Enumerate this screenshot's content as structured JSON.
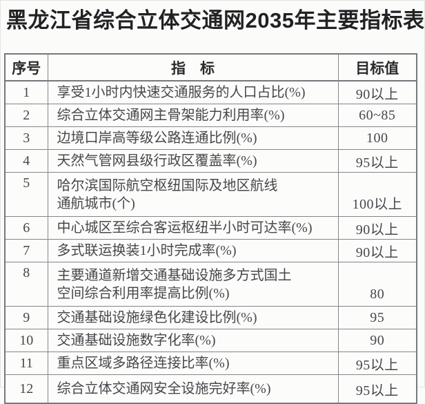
{
  "page": {
    "title": "黑龙江省综合立体交通网2035年主要指标表"
  },
  "table": {
    "headers": {
      "no": "序号",
      "indicator": "指　标",
      "target": "目标值"
    },
    "rows": [
      {
        "no": "1",
        "indicator": "享受1小时内快速交通服务的人口占比(%)",
        "target": "90以上"
      },
      {
        "no": "2",
        "indicator": "综合立体交通网主骨架能力利用率(%)",
        "target": "60~85"
      },
      {
        "no": "3",
        "indicator": "边境口岸高等级公路连通比例(%)",
        "target": "100"
      },
      {
        "no": "4",
        "indicator": "天然气管网县级行政区覆盖率(%)",
        "target": "95以上"
      },
      {
        "no": "5",
        "indicator": "哈尔滨国际航空枢纽国际及地区航线\n通航城市(个)",
        "target": "100以上"
      },
      {
        "no": "6",
        "indicator": "中心城区至综合客运枢纽半小时可达率(%)",
        "target": "90以上"
      },
      {
        "no": "7",
        "indicator": "多式联运换装1小时完成率(%)",
        "target": "90以上"
      },
      {
        "no": "8",
        "indicator": "主要通道新增交通基础设施多方式国土\n空间综合利用率提高比例(%)",
        "target": "80"
      },
      {
        "no": "9",
        "indicator": "交通基础设施绿色化建设比例(%)",
        "target": "95"
      },
      {
        "no": "10",
        "indicator": "交通基础设施数字化率(%)",
        "target": "90"
      },
      {
        "no": "11",
        "indicator": "重点区域多路径连接比率(%)",
        "target": "95以上"
      },
      {
        "no": "12",
        "indicator": "综合立体交通网安全设施完好率(%)",
        "target": "95以上"
      }
    ]
  },
  "colors": {
    "background": "#fbfbfa",
    "title_text": "#222224",
    "body_text": "#47474b",
    "border": "#77777c"
  }
}
